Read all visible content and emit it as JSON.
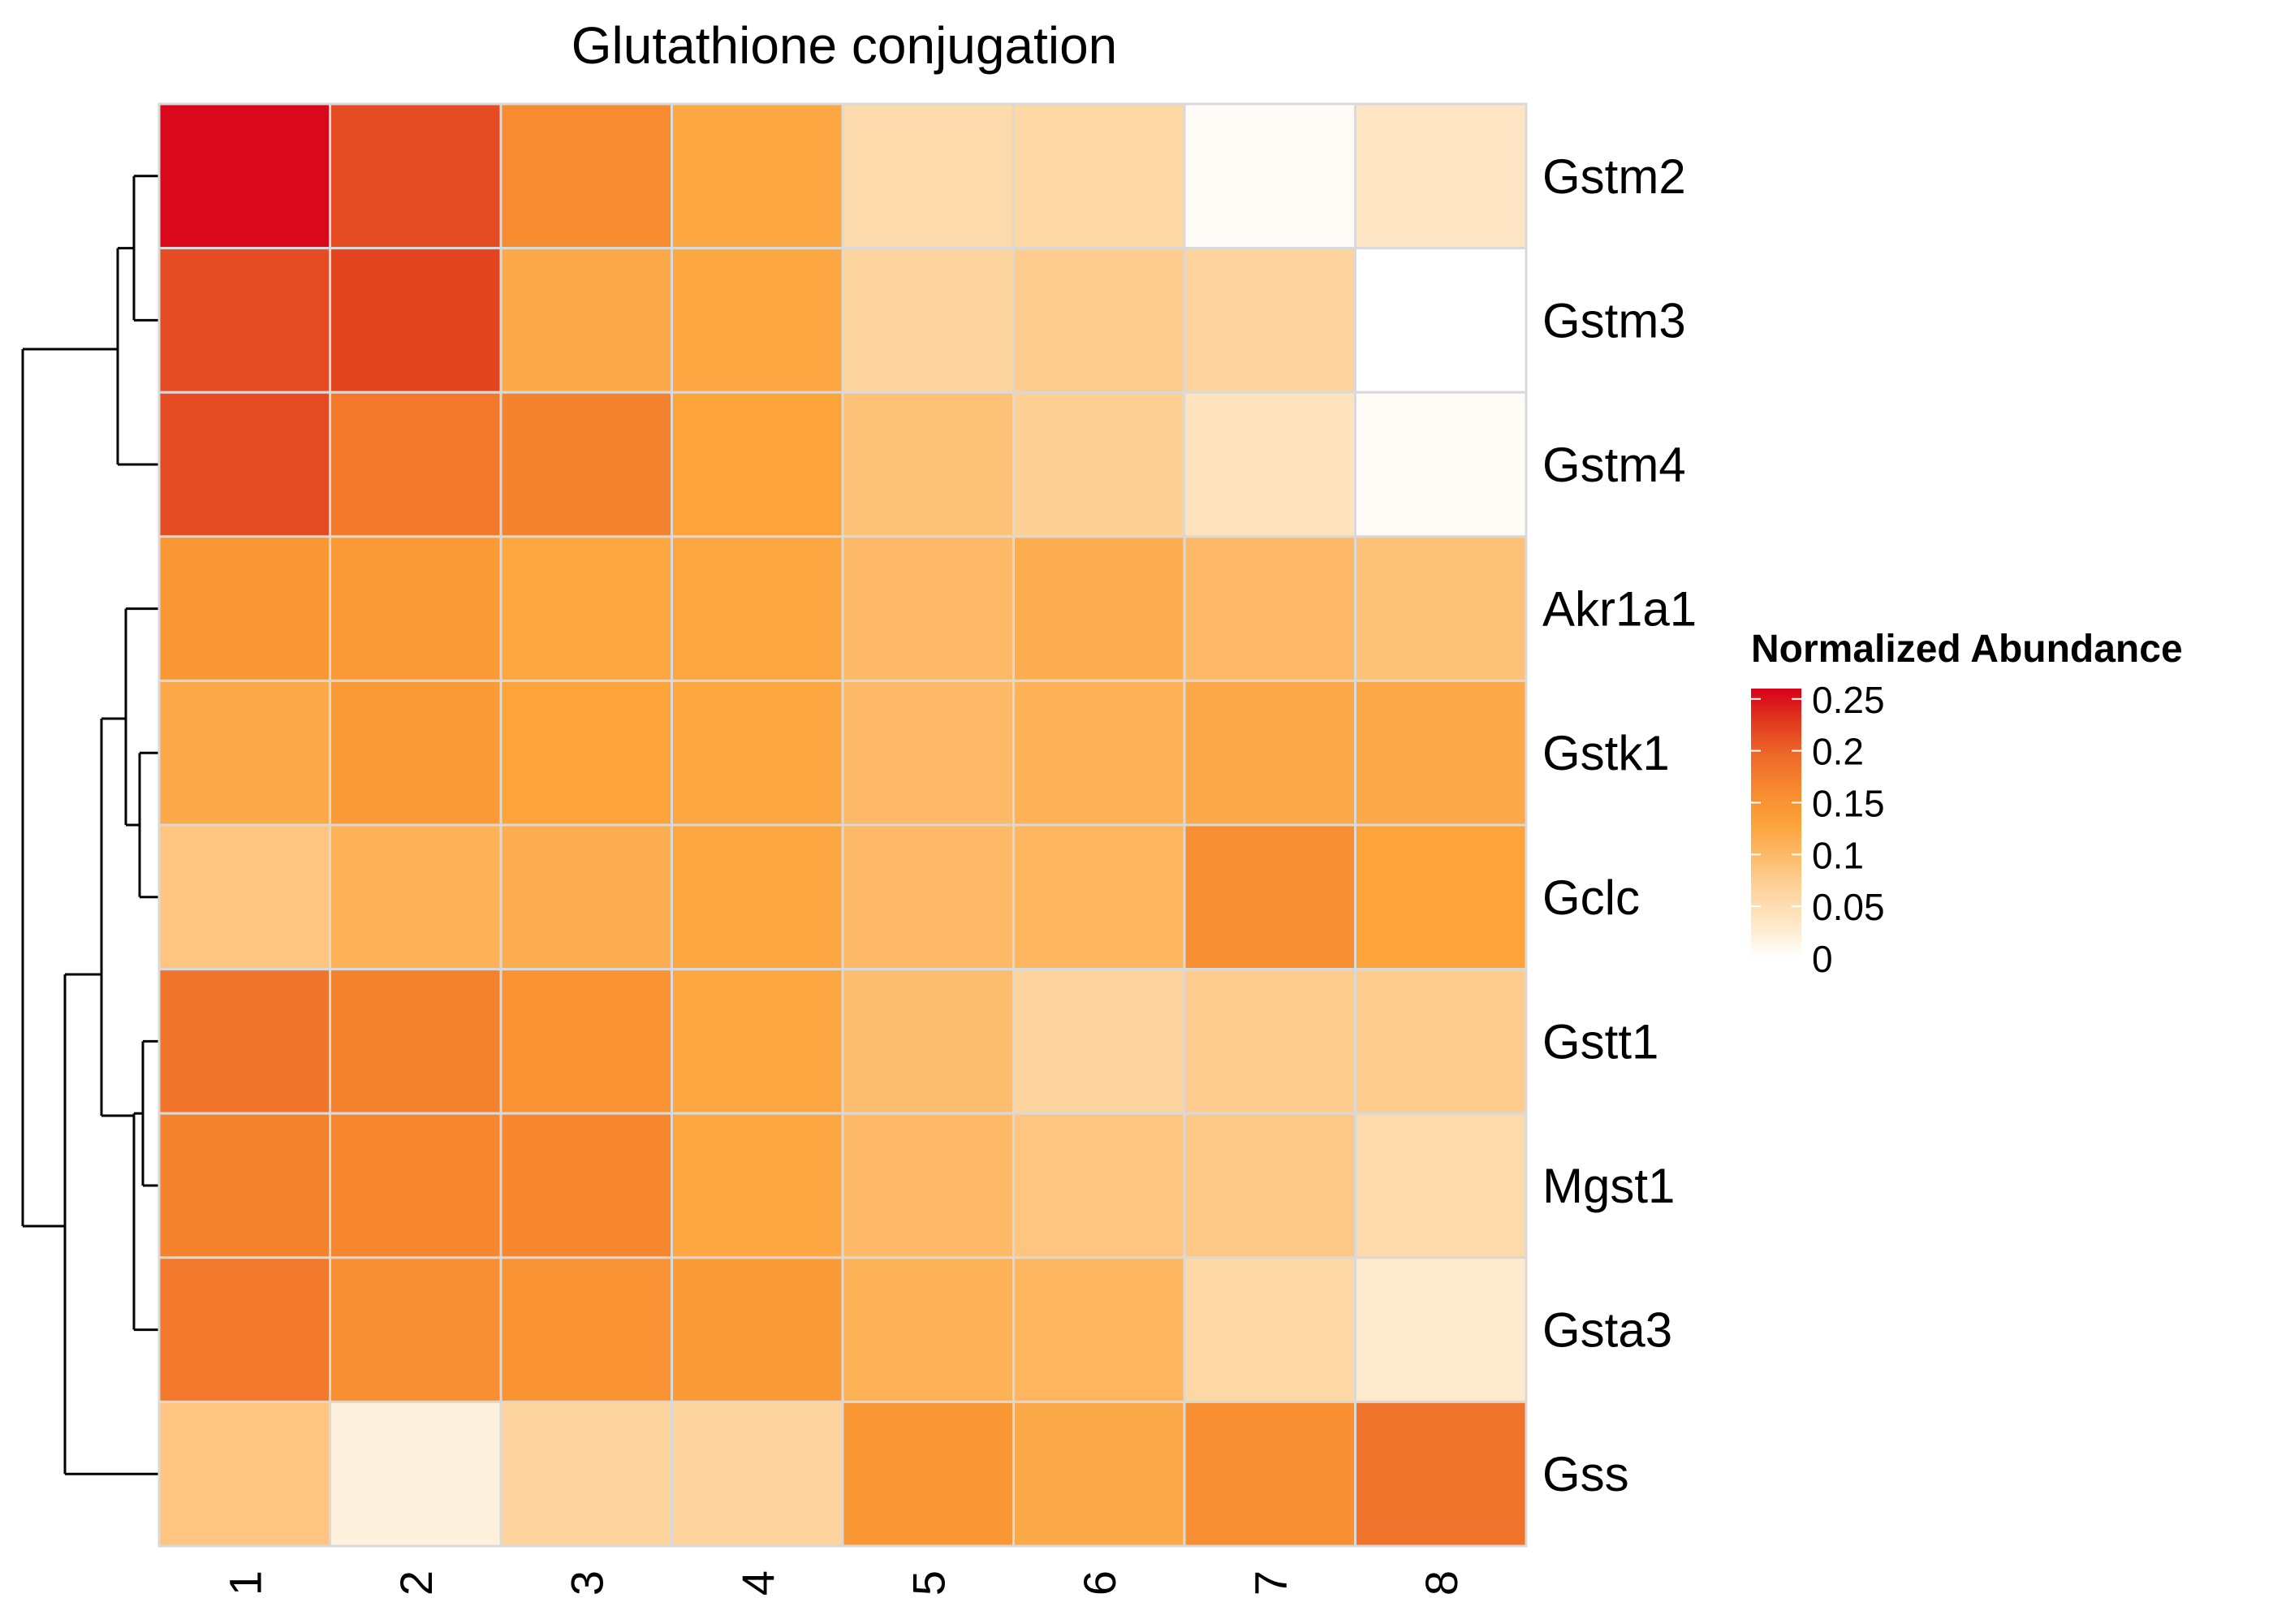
{
  "chart_data": {
    "type": "heatmap",
    "title": "Glutathione conjugation",
    "rows": [
      "Gstm2",
      "Gstm3",
      "Gstm4",
      "Akr1a1",
      "Gstk1",
      "Gclc",
      "Gstt1",
      "Mgst1",
      "Gsta3",
      "Gss"
    ],
    "columns": [
      "1",
      "2",
      "3",
      "4",
      "5",
      "6",
      "7",
      "8"
    ],
    "values": [
      [
        0.255,
        0.215,
        0.16,
        0.125,
        0.055,
        0.06,
        0.005,
        0.035
      ],
      [
        0.215,
        0.22,
        0.12,
        0.125,
        0.065,
        0.075,
        0.065,
        0.0
      ],
      [
        0.215,
        0.18,
        0.17,
        0.13,
        0.09,
        0.07,
        0.04,
        0.005
      ],
      [
        0.145,
        0.14,
        0.125,
        0.125,
        0.1,
        0.115,
        0.1,
        0.09
      ],
      [
        0.12,
        0.14,
        0.13,
        0.125,
        0.1,
        0.11,
        0.12,
        0.12
      ],
      [
        0.085,
        0.11,
        0.115,
        0.125,
        0.1,
        0.105,
        0.155,
        0.13
      ],
      [
        0.185,
        0.17,
        0.15,
        0.125,
        0.095,
        0.065,
        0.075,
        0.075
      ],
      [
        0.17,
        0.165,
        0.165,
        0.125,
        0.1,
        0.085,
        0.08,
        0.055
      ],
      [
        0.18,
        0.155,
        0.15,
        0.14,
        0.11,
        0.105,
        0.06,
        0.03
      ],
      [
        0.085,
        0.02,
        0.065,
        0.065,
        0.145,
        0.12,
        0.155,
        0.185
      ]
    ],
    "color_scale": {
      "colors": [
        "#ffffff",
        "#fee8c8",
        "#fdd49e",
        "#fdbb6b",
        "#fca33a",
        "#f7892f",
        "#ee6a2a",
        "#e13a1e",
        "#d7001b"
      ],
      "min": 0,
      "max": 0.26
    },
    "cell_border_color": "#d9d9d9",
    "row_dendrogram": true,
    "legend": {
      "title": "Normalized Abundance",
      "ticks": [
        "0.25",
        "0.2",
        "0.15",
        "0.1",
        "0.05",
        "0"
      ],
      "tick_values": [
        0.25,
        0.2,
        0.15,
        0.1,
        0.05,
        0
      ]
    }
  }
}
